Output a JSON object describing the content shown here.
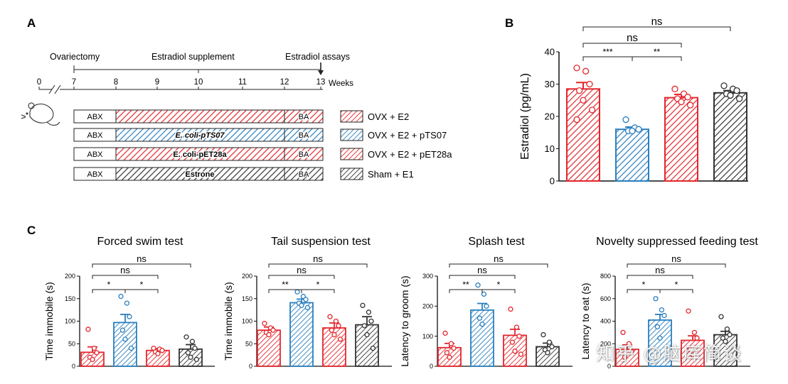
{
  "colors": {
    "red": "#e3262c",
    "blue": "#2a7fbf",
    "black": "#333333",
    "axis": "#111111"
  },
  "panel_labels": {
    "a": "A",
    "b": "B",
    "c": "C"
  },
  "timeline": {
    "events": {
      "ovx": "Ovariectomy",
      "supplement": "Estradiol supplement",
      "assays": "Estradiol assays"
    },
    "tick_labels": [
      "0",
      "7",
      "8",
      "9",
      "10",
      "11",
      "12",
      "13"
    ],
    "unit": "Weeks",
    "bars": [
      {
        "abx": "ABX",
        "mid": "",
        "ba": "BA",
        "legend": "OVX + E2"
      },
      {
        "abx": "ABX",
        "mid": "E. coli-pTS07",
        "ba": "BA",
        "legend": "OVX + E2 + pTS07"
      },
      {
        "abx": "ABX",
        "mid": "E. coli-pET28a",
        "ba": "BA",
        "legend": "OVX + E2 + pET28a"
      },
      {
        "abx": "ABX",
        "mid": "Estrone",
        "ba": "BA",
        "legend": "Sham + E1"
      }
    ]
  },
  "watermark": "知乎 @脑库简谈",
  "chart_data": [
    {
      "id": "B",
      "type": "bar",
      "title": "",
      "ylabel": "Estradiol (pg/mL)",
      "ylim": [
        0,
        40
      ],
      "yticks": [
        "0",
        "10",
        "20",
        "30",
        "40"
      ],
      "categories": [
        "OVX + E2",
        "OVX + E2 + pTS07",
        "OVX + E2 + pET28a",
        "Sham + E1"
      ],
      "values": [
        28.5,
        16.0,
        25.8,
        27.3
      ],
      "errors": [
        2.0,
        0.7,
        1.0,
        0.7
      ],
      "points": [
        [
          35,
          34,
          30,
          28,
          25,
          22,
          19
        ],
        [
          19,
          16.5,
          16,
          15.5,
          15.5
        ],
        [
          28.5,
          27,
          26,
          25.5,
          24.5,
          23.5
        ],
        [
          29.5,
          28.5,
          28,
          27,
          26.5,
          25.5
        ]
      ],
      "comparisons": [
        {
          "a": 0,
          "b": 3,
          "label": "ns"
        },
        {
          "a": 0,
          "b": 2,
          "label": "ns"
        },
        {
          "a": 0,
          "b": 1,
          "label": "***"
        },
        {
          "a": 1,
          "b": 2,
          "label": "**"
        }
      ]
    },
    {
      "id": "C1",
      "type": "bar",
      "title": "Forced swim test",
      "ylabel": "Time immobile (s)",
      "ylim": [
        0,
        200
      ],
      "yticks": [
        "0",
        "50",
        "100",
        "150",
        "200"
      ],
      "categories": [
        "OVX + E2",
        "OVX + E2 + pTS07",
        "OVX + E2 + pET28a",
        "Sham + E1"
      ],
      "values": [
        31,
        97,
        35,
        38
      ],
      "errors": [
        12,
        18,
        4,
        10
      ],
      "points": [
        [
          82,
          40,
          30,
          20,
          15
        ],
        [
          155,
          140,
          110,
          80,
          60,
          40
        ],
        [
          40,
          38,
          35,
          32,
          28
        ],
        [
          65,
          55,
          40,
          30,
          20,
          15
        ]
      ],
      "comparisons": [
        {
          "a": 0,
          "b": 3,
          "label": "ns"
        },
        {
          "a": 0,
          "b": 2,
          "label": "ns"
        },
        {
          "a": 0,
          "b": 1,
          "label": "*"
        },
        {
          "a": 1,
          "b": 2,
          "label": "*"
        }
      ]
    },
    {
      "id": "C2",
      "type": "bar",
      "title": "Tail suspension test",
      "ylabel": "Time immobile (s)",
      "ylim": [
        0,
        200
      ],
      "yticks": [
        "0",
        "50",
        "100",
        "150",
        "200"
      ],
      "categories": [
        "OVX + E2",
        "OVX + E2 + pTS07",
        "OVX + E2 + pET28a",
        "Sham + E1"
      ],
      "values": [
        80,
        141,
        85,
        92
      ],
      "errors": [
        7,
        8,
        11,
        18
      ],
      "points": [
        [
          95,
          85,
          80,
          75,
          70
        ],
        [
          165,
          155,
          148,
          140,
          135,
          130
        ],
        [
          110,
          100,
          90,
          80,
          70,
          60
        ],
        [
          135,
          120,
          100,
          90,
          70,
          40
        ]
      ],
      "comparisons": [
        {
          "a": 0,
          "b": 3,
          "label": "ns"
        },
        {
          "a": 0,
          "b": 2,
          "label": "ns"
        },
        {
          "a": 0,
          "b": 1,
          "label": "**"
        },
        {
          "a": 1,
          "b": 2,
          "label": "*"
        }
      ]
    },
    {
      "id": "C3",
      "type": "bar",
      "title": "Splash test",
      "ylabel": "Latency to groom (s)",
      "ylim": [
        0,
        300
      ],
      "yticks": [
        "0",
        "100",
        "200",
        "300"
      ],
      "categories": [
        "OVX + E2",
        "OVX + E2 + pTS07",
        "OVX + E2 + pET28a",
        "Sham + E1"
      ],
      "values": [
        62,
        187,
        103,
        65
      ],
      "errors": [
        14,
        22,
        20,
        12
      ],
      "points": [
        [
          110,
          75,
          60,
          45,
          30
        ],
        [
          270,
          240,
          200,
          160,
          140
        ],
        [
          190,
          130,
          100,
          80,
          50,
          40
        ],
        [
          105,
          80,
          65,
          55,
          45
        ]
      ],
      "comparisons": [
        {
          "a": 0,
          "b": 3,
          "label": "ns"
        },
        {
          "a": 0,
          "b": 2,
          "label": "ns"
        },
        {
          "a": 0,
          "b": 1,
          "label": "**"
        },
        {
          "a": 1,
          "b": 2,
          "label": "*"
        }
      ]
    },
    {
      "id": "C4",
      "type": "bar",
      "title": "Novelty suppressed feeding test",
      "ylabel": "Latency to eat (s)",
      "ylim": [
        0,
        800
      ],
      "yticks": [
        "0",
        "200",
        "400",
        "600",
        "800"
      ],
      "categories": [
        "OVX + E2",
        "OVX + E2 + pTS07",
        "OVX + E2 + pET28a",
        "Sham + E1"
      ],
      "values": [
        150,
        410,
        230,
        280
      ],
      "errors": [
        40,
        50,
        40,
        30
      ],
      "points": [
        [
          300,
          200,
          130,
          80
        ],
        [
          600,
          500,
          450,
          350,
          250
        ],
        [
          490,
          300,
          250,
          150,
          100
        ],
        [
          440,
          330,
          280,
          250,
          220
        ]
      ],
      "comparisons": [
        {
          "a": 0,
          "b": 3,
          "label": "ns"
        },
        {
          "a": 0,
          "b": 2,
          "label": "ns"
        },
        {
          "a": 0,
          "b": 1,
          "label": "*"
        },
        {
          "a": 1,
          "b": 2,
          "label": "*"
        }
      ]
    }
  ]
}
